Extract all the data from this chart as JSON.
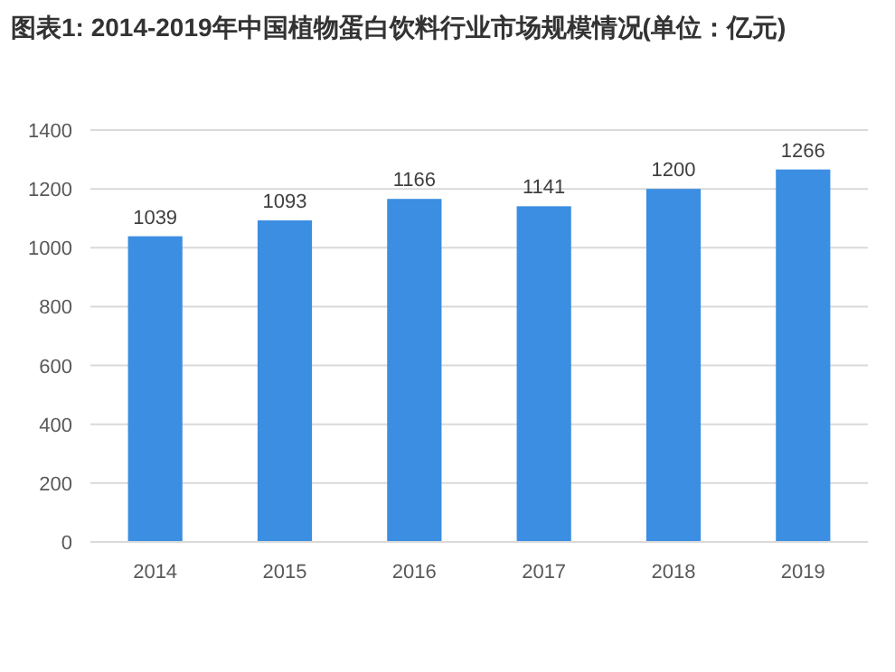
{
  "chart_data": {
    "type": "bar",
    "title": "图表1: 2014-2019年中国植物蛋白饮料行业市场规模情况(单位：亿元)",
    "categories": [
      "2014",
      "2015",
      "2016",
      "2017",
      "2018",
      "2019"
    ],
    "values": [
      1039,
      1093,
      1166,
      1141,
      1200,
      1266
    ],
    "color": "#3b8ee2",
    "ylim": [
      0,
      1400
    ],
    "yticks": [
      0,
      200,
      400,
      600,
      800,
      1000,
      1200,
      1400
    ],
    "grid": "y",
    "data_labels": true
  }
}
